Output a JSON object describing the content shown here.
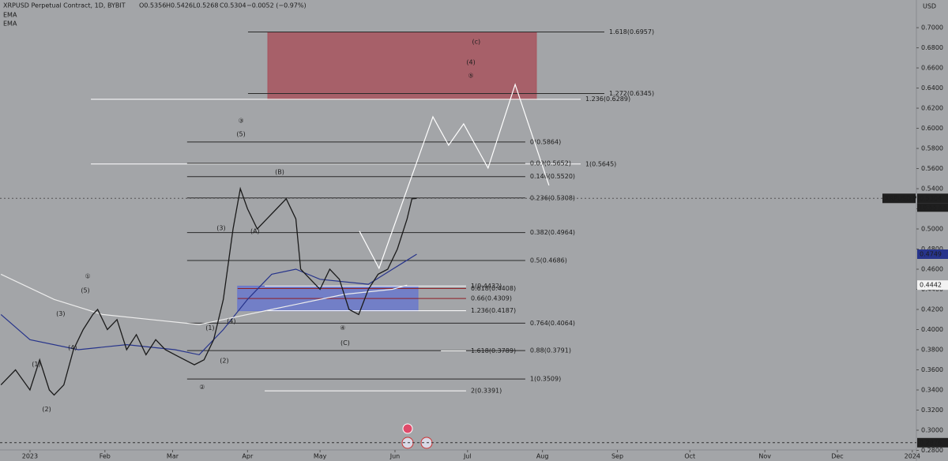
{
  "chart_data": {
    "type": "line",
    "title": "XRPUSD Perpetual Contract, 1D, BYBIT",
    "ohlc": [
      "O0.5356",
      "H0.5426",
      "L0.5268",
      "C0.5304",
      "−0.0052 (−0.97%)"
    ],
    "y_unit": "USD",
    "xlim": [
      -12.4,
      366.7
    ],
    "ylim": [
      0.2694,
      0.7275
    ],
    "xticks": [
      {
        "value": 0,
        "label": "2023"
      },
      {
        "value": 31,
        "label": "Feb"
      },
      {
        "value": 59,
        "label": "Mar"
      },
      {
        "value": 90,
        "label": "Apr"
      },
      {
        "value": 120,
        "label": "May"
      },
      {
        "value": 151,
        "label": "Jun"
      },
      {
        "value": 181,
        "label": "Jul"
      },
      {
        "value": 212,
        "label": "Aug"
      },
      {
        "value": 243,
        "label": "Sep"
      },
      {
        "value": 273,
        "label": "Oct"
      },
      {
        "value": 304,
        "label": "Nov"
      },
      {
        "value": 334,
        "label": "Dec"
      },
      {
        "value": 365,
        "label": "2024"
      }
    ],
    "yticks": [
      {
        "value": 0.28,
        "label": "0.2800"
      },
      {
        "value": 0.3,
        "label": "0.3000"
      },
      {
        "value": 0.32,
        "label": "0.3200"
      },
      {
        "value": 0.34,
        "label": "0.3400"
      },
      {
        "value": 0.36,
        "label": "0.3600"
      },
      {
        "value": 0.38,
        "label": "0.3800"
      },
      {
        "value": 0.4,
        "label": "0.4000"
      },
      {
        "value": 0.42,
        "label": "0.4200"
      },
      {
        "value": 0.44,
        "label": "0.4400"
      },
      {
        "value": 0.46,
        "label": "0.4600"
      },
      {
        "value": 0.48,
        "label": "0.4800"
      },
      {
        "value": 0.5,
        "label": "0.5000"
      },
      {
        "value": 0.52,
        "label": "0.5200"
      },
      {
        "value": 0.54,
        "label": "0.5400"
      },
      {
        "value": 0.56,
        "label": "0.5600"
      },
      {
        "value": 0.58,
        "label": "0.5800"
      },
      {
        "value": 0.6,
        "label": "0.6000"
      },
      {
        "value": 0.62,
        "label": "0.6200"
      },
      {
        "value": 0.64,
        "label": "0.6400"
      },
      {
        "value": 0.66,
        "label": "0.6600"
      },
      {
        "value": 0.68,
        "label": "0.6800"
      },
      {
        "value": 0.7,
        "label": "0.7000"
      }
    ],
    "price": {
      "color": "#1a1a1a",
      "x": [
        -12,
        -6,
        0,
        4,
        8,
        10,
        14,
        18,
        22,
        26,
        28,
        32,
        36,
        40,
        44,
        48,
        52,
        56,
        60,
        64,
        68,
        72,
        76,
        80,
        84,
        87,
        90,
        94,
        98,
        102,
        106,
        110,
        112,
        116,
        120,
        124,
        128,
        132,
        136,
        140,
        144,
        148,
        152,
        156,
        158,
        160
      ],
      "values": [
        0.345,
        0.36,
        0.34,
        0.37,
        0.34,
        0.335,
        0.345,
        0.38,
        0.4,
        0.415,
        0.42,
        0.4,
        0.41,
        0.38,
        0.395,
        0.375,
        0.39,
        0.38,
        0.375,
        0.37,
        0.365,
        0.37,
        0.39,
        0.43,
        0.5,
        0.54,
        0.52,
        0.5,
        0.51,
        0.52,
        0.53,
        0.51,
        0.46,
        0.45,
        0.44,
        0.46,
        0.45,
        0.42,
        0.415,
        0.44,
        0.455,
        0.46,
        0.48,
        0.51,
        0.53,
        0.5304
      ]
    },
    "series": [
      {
        "name": "EMA",
        "color": "#27348b",
        "x": [
          -12,
          0,
          20,
          40,
          60,
          70,
          80,
          90,
          100,
          110,
          120,
          140,
          150,
          160
        ],
        "values": [
          0.415,
          0.39,
          0.38,
          0.385,
          0.38,
          0.375,
          0.4,
          0.43,
          0.455,
          0.46,
          0.45,
          0.445,
          0.46,
          0.4749
        ]
      },
      {
        "name": "EMA",
        "color": "#ececec",
        "x": [
          -12,
          10,
          30,
          50,
          70,
          80,
          100,
          130,
          150,
          156
        ],
        "values": [
          0.455,
          0.43,
          0.415,
          0.41,
          0.405,
          0.41,
          0.42,
          0.435,
          0.44,
          0.4442
        ]
      }
    ],
    "projection": {
      "color": "#ffffff",
      "x": [
        136.3,
        144.4,
        166.7,
        173.2,
        179.4,
        189.5,
        200.7,
        214.7
      ],
      "values": [
        0.4978,
        0.4609,
        0.6115,
        0.5832,
        0.6044,
        0.5605,
        0.6436,
        0.5433
      ]
    },
    "last_price": {
      "symbol": "XRPUSD.P",
      "value": 0.5304,
      "countdown": "10:55:55"
    },
    "low": 0.2876,
    "zones": [
      {
        "color": "#a8545e",
        "x": [
          98.4,
          209.5
        ],
        "values": [
          0.6957,
          0.6289
        ]
      },
      {
        "color": "#6a78cc",
        "x": [
          85.9,
          160.5
        ],
        "values": [
          0.4432,
          0.4187
        ]
      }
    ],
    "levels": [
      {
        "label": "1.618(0.6957)",
        "value": 0.6957,
        "x": [
          90.2,
          237.6
        ],
        "color": "#2a2a2a"
      },
      {
        "label": "1.272(0.6345)",
        "value": 0.6345,
        "x": [
          90.2,
          237.6
        ],
        "color": "#2a2a2a"
      },
      {
        "label": "1.236(0.6289)",
        "value": 0.6289,
        "x": [
          25.2,
          227.8
        ],
        "color": "#ffffff"
      },
      {
        "label": "1(0.5645)",
        "value": 0.5645,
        "x": [
          25.2,
          227.8
        ],
        "color": "#ffffff"
      },
      {
        "label": "0(0.5864)",
        "value": 0.5864,
        "x": [
          65.0,
          204.9
        ],
        "color": "#2a2a2a"
      },
      {
        "label": "0.09(0.5652)",
        "value": 0.5652,
        "x": [
          65.0,
          204.9
        ],
        "color": "#2a2a2a"
      },
      {
        "label": "0.146(0.5520)",
        "value": 0.552,
        "x": [
          65.0,
          204.9
        ],
        "color": "#2a2a2a"
      },
      {
        "label": "0.236(0.5308)",
        "value": 0.5308,
        "x": [
          65.0,
          204.9
        ],
        "color": "#2a2a2a"
      },
      {
        "label": "0.382(0.4964)",
        "value": 0.4964,
        "x": [
          65.0,
          204.9
        ],
        "color": "#2a2a2a"
      },
      {
        "label": "0.5(0.4686)",
        "value": 0.4686,
        "x": [
          65.0,
          204.9
        ],
        "color": "#2a2a2a"
      },
      {
        "label": "0.764(0.4064)",
        "value": 0.4064,
        "x": [
          65.0,
          204.9
        ],
        "color": "#2a2a2a"
      },
      {
        "label": "0.88(0.3791)",
        "value": 0.3791,
        "x": [
          65.0,
          204.9
        ],
        "color": "#2a2a2a"
      },
      {
        "label": "1(0.3509)",
        "value": 0.3509,
        "x": [
          65.0,
          204.9
        ],
        "color": "#2a2a2a"
      },
      {
        "label": "1(0.4432)",
        "value": 0.4432,
        "x": [
          97.1,
          180.4
        ],
        "color": "#ffffff"
      },
      {
        "label": "0.618(0.4408)",
        "value": 0.4408,
        "x": [
          85.9,
          180.4
        ],
        "color": "#8e1f24"
      },
      {
        "label": "0.66(0.4309)",
        "value": 0.4309,
        "x": [
          85.9,
          180.4
        ],
        "color": "#8e1f24"
      },
      {
        "label": "1.236(0.4187)",
        "value": 0.4187,
        "x": [
          97.1,
          180.4
        ],
        "color": "#ffffff"
      },
      {
        "label": "1.618(0.3789)",
        "value": 0.3789,
        "x": [
          170.0,
          180.4
        ],
        "color": "#ffffff"
      },
      {
        "label": "2(0.3391)",
        "value": 0.3391,
        "x": [
          97.1,
          180.4
        ],
        "color": "#ffffff"
      }
    ],
    "wave_labels": [
      {
        "text": "(c)",
        "x": 184.6,
        "y": 0.6859,
        "color": "#e8c4c8"
      },
      {
        "text": "(4)",
        "x": 182.4,
        "y": 0.6656,
        "color": "#1c1c1c"
      },
      {
        "text": "⑤",
        "x": 182.4,
        "y": 0.6522,
        "color": "#e8c4c8"
      },
      {
        "text": "③",
        "x": 87.3,
        "y": 0.6076,
        "color": "#ffffff"
      },
      {
        "text": "(5)",
        "x": 87.3,
        "y": 0.5942,
        "color": "#1c1c1c"
      },
      {
        "text": "(B)",
        "x": 103.3,
        "y": 0.5566,
        "color": "#1c1c1c"
      },
      {
        "text": "(3)",
        "x": 79.1,
        "y": 0.5009,
        "color": "#1c1c1c"
      },
      {
        "text": "(A)",
        "x": 93.1,
        "y": 0.4978,
        "color": "#1c1c1c"
      },
      {
        "text": "(1)",
        "x": 74.5,
        "y": 0.4014,
        "color": "#1c1c1c"
      },
      {
        "text": "(4)",
        "x": 83.3,
        "y": 0.4084,
        "color": "#1c1c1c"
      },
      {
        "text": "(2)",
        "x": 80.4,
        "y": 0.3692,
        "color": "#1c1c1c"
      },
      {
        "text": "②",
        "x": 71.2,
        "y": 0.3426,
        "color": "#ffffff"
      },
      {
        "text": "④",
        "x": 129.4,
        "y": 0.4014,
        "color": "#ffffff"
      },
      {
        "text": "(C)",
        "x": 130.4,
        "y": 0.3865,
        "color": "#1c1c1c"
      },
      {
        "text": "①",
        "x": 23.9,
        "y": 0.4531,
        "color": "#ffffff"
      },
      {
        "text": "(5)",
        "x": 22.9,
        "y": 0.439,
        "color": "#1c1c1c"
      },
      {
        "text": "(3)",
        "x": 12.7,
        "y": 0.4155,
        "color": "#1c1c1c"
      },
      {
        "text": "(4)",
        "x": 17.6,
        "y": 0.3818,
        "color": "#1c1c1c"
      },
      {
        "text": "(1)",
        "x": 2.6,
        "y": 0.3653,
        "color": "#1c1c1c"
      },
      {
        "text": "(2)",
        "x": 6.9,
        "y": 0.3206,
        "color": "#1c1c1c"
      }
    ]
  }
}
